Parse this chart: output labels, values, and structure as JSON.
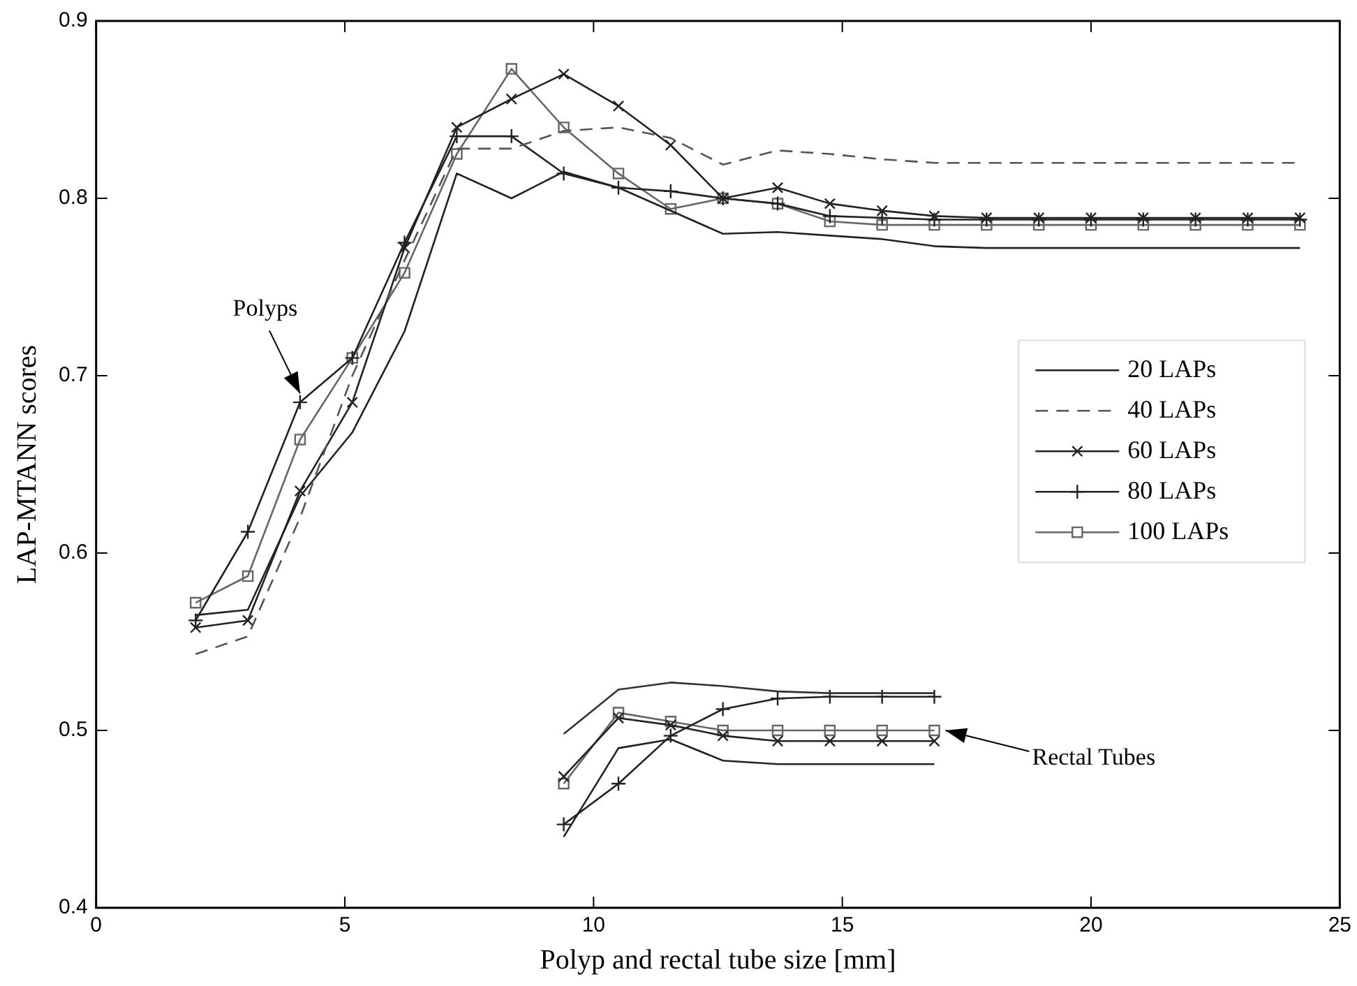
{
  "chart_data": {
    "type": "line",
    "xlabel": "Polyp and rectal tube size [mm]",
    "ylabel": "LAP-MTANN scores",
    "xlim": [
      0,
      25
    ],
    "xticks": [
      0,
      5,
      10,
      15,
      20,
      25
    ],
    "ylim": [
      0.4,
      0.9
    ],
    "yticks": [
      0.4,
      0.5,
      0.6,
      0.7,
      0.8,
      0.9
    ],
    "grid": false,
    "legend": "right",
    "x": [
      2,
      3.05,
      4.1,
      5.15,
      6.2,
      7.25,
      8.35,
      9.4,
      10.5,
      11.55,
      12.6,
      13.7,
      14.75,
      15.8,
      16.85,
      17.9,
      18.95,
      20,
      21.05,
      22.1,
      23.15,
      24.2
    ],
    "series": [
      {
        "name": "20 LAPs",
        "color": "#222222",
        "marker": "none",
        "line_style": "solid",
        "values": [
          0.565,
          0.568,
          0.632,
          0.668,
          0.725,
          0.814,
          0.8,
          0.815,
          0.806,
          0.793,
          0.78,
          0.781,
          0.779,
          0.777,
          0.773,
          0.772,
          0.772,
          0.772,
          0.772,
          0.772,
          0.772,
          0.772
        ]
      },
      {
        "name": "40 LAPs",
        "color": "#555555",
        "marker": "none",
        "line_style": "dashed",
        "values": [
          0.543,
          0.553,
          0.62,
          0.7,
          0.765,
          0.828,
          0.828,
          0.838,
          0.84,
          0.834,
          0.819,
          0.827,
          0.825,
          0.822,
          0.82,
          0.82,
          0.82,
          0.82,
          0.82,
          0.82,
          0.82,
          0.82
        ]
      },
      {
        "name": "60 LAPs",
        "color": "#222222",
        "marker": "cross",
        "line_style": "solid",
        "values": [
          0.558,
          0.562,
          0.635,
          0.685,
          0.772,
          0.84,
          0.856,
          0.87,
          0.852,
          0.83,
          0.8,
          0.806,
          0.797,
          0.793,
          0.79,
          0.789,
          0.789,
          0.789,
          0.789,
          0.789,
          0.789,
          0.789
        ]
      },
      {
        "name": "80 LAPs",
        "color": "#222222",
        "marker": "plus",
        "line_style": "solid",
        "values": [
          0.562,
          0.612,
          0.685,
          0.71,
          0.775,
          0.835,
          0.835,
          0.814,
          0.806,
          0.804,
          0.8,
          0.797,
          0.79,
          0.789,
          0.788,
          0.788,
          0.788,
          0.788,
          0.788,
          0.788,
          0.788,
          0.788
        ]
      },
      {
        "name": "100 LAPs",
        "color": "#666666",
        "marker": "square",
        "line_style": "solid",
        "values": [
          0.572,
          0.587,
          0.664,
          0.71,
          0.758,
          0.825,
          0.873,
          0.84,
          0.814,
          0.794,
          0.8,
          0.797,
          0.787,
          0.785,
          0.785,
          0.785,
          0.785,
          0.785,
          0.785,
          0.785,
          0.785,
          0.785
        ]
      },
      {
        "color": "#222222",
        "marker": "none",
        "line_style": "solid",
        "x": [
          9.4,
          10.5,
          11.55,
          12.6,
          13.7,
          14.75,
          15.8,
          16.85
        ],
        "values": [
          0.44,
          0.49,
          0.495,
          0.483,
          0.481,
          0.481,
          0.481,
          0.481
        ]
      },
      {
        "color": "#333333",
        "marker": "none",
        "line_style": "solid",
        "x": [
          9.4,
          10.5,
          11.55,
          12.6,
          13.7,
          14.75,
          15.8,
          16.85
        ],
        "values": [
          0.498,
          0.523,
          0.527,
          0.525,
          0.522,
          0.521,
          0.521,
          0.521
        ]
      },
      {
        "color": "#222222",
        "marker": "cross",
        "line_style": "solid",
        "x": [
          9.4,
          10.5,
          11.55,
          12.6,
          13.7,
          14.75,
          15.8,
          16.85
        ],
        "values": [
          0.474,
          0.507,
          0.503,
          0.497,
          0.494,
          0.494,
          0.494,
          0.494
        ]
      },
      {
        "color": "#222222",
        "marker": "plus",
        "line_style": "solid",
        "x": [
          9.4,
          10.5,
          11.55,
          12.6,
          13.7,
          14.75,
          15.8,
          16.85
        ],
        "values": [
          0.447,
          0.47,
          0.497,
          0.512,
          0.518,
          0.519,
          0.519,
          0.519
        ]
      },
      {
        "color": "#666666",
        "marker": "square",
        "line_style": "solid",
        "x": [
          9.4,
          10.5,
          11.55,
          12.6,
          13.7,
          14.75,
          15.8,
          16.85
        ],
        "values": [
          0.47,
          0.51,
          0.505,
          0.5,
          0.5,
          0.5,
          0.5,
          0.5
        ]
      }
    ],
    "annotations": [
      {
        "text": "Polyps",
        "x": 4.1,
        "y": 0.69
      },
      {
        "text": "Rectal Tubes",
        "x": 16.85,
        "y": 0.5
      }
    ]
  }
}
